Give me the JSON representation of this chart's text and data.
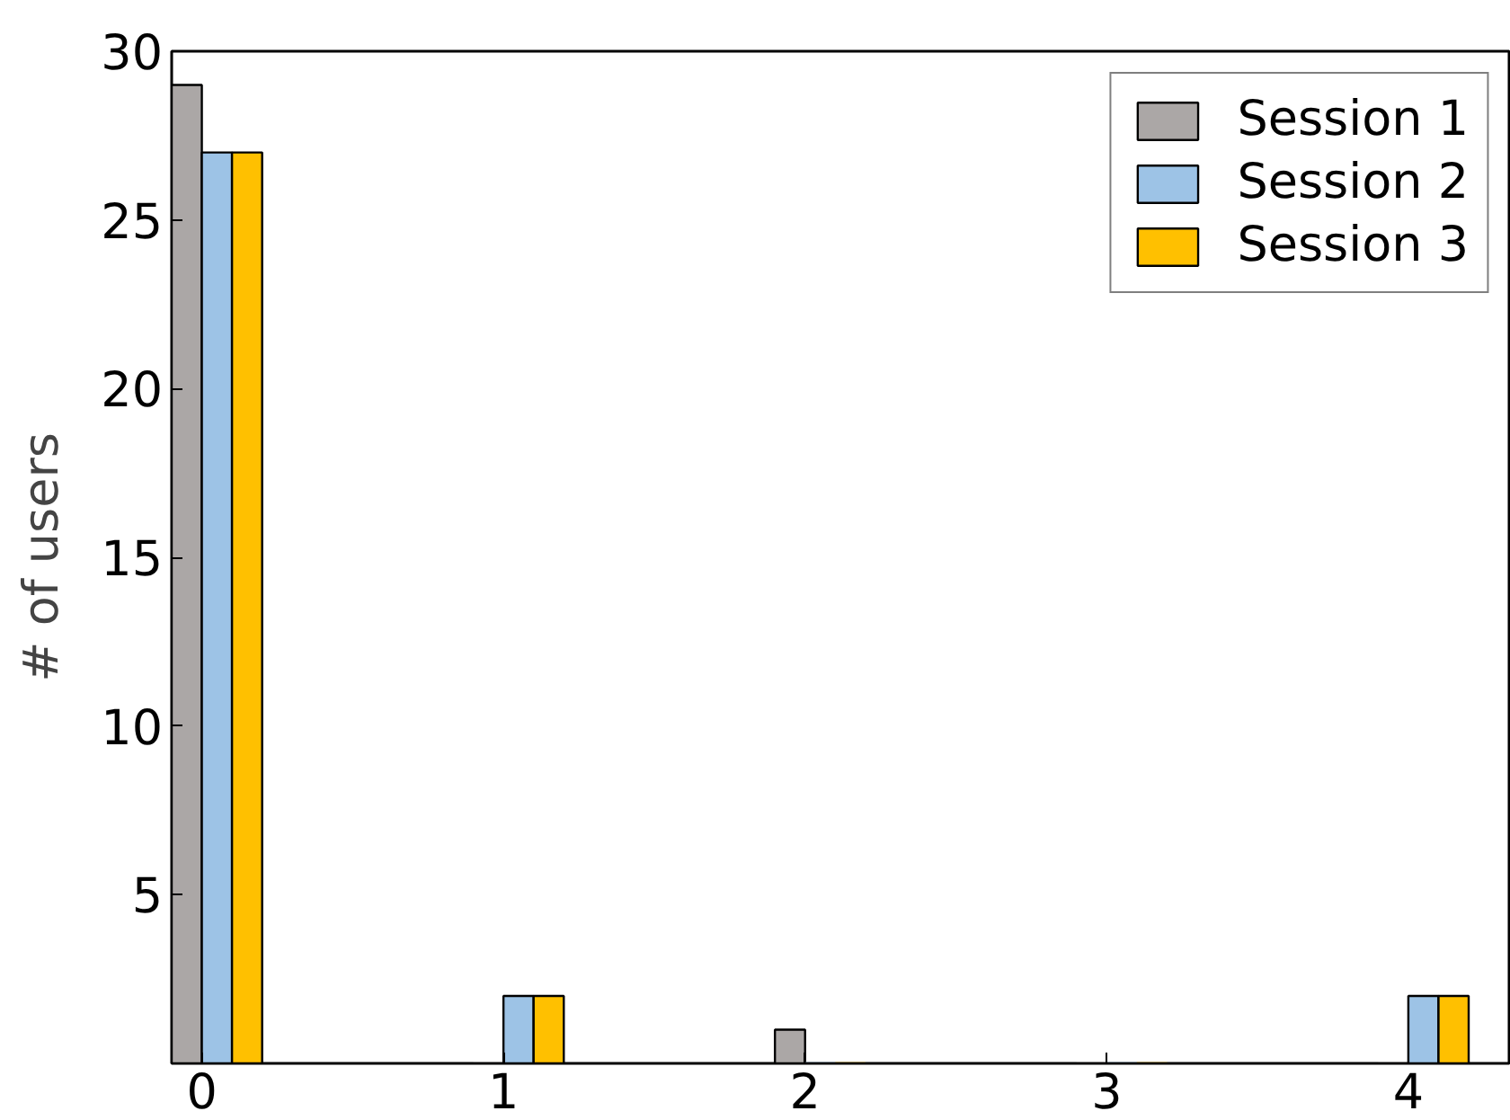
{
  "chart_data": {
    "type": "bar",
    "ylabel": "# of users",
    "x": [
      0,
      1,
      2,
      3,
      4
    ],
    "series": [
      {
        "name": "Session 1",
        "color": "#aba7a6",
        "values": [
          29,
          0,
          1,
          0,
          0
        ]
      },
      {
        "name": "Session 2",
        "color": "#9dc3e6",
        "values": [
          27,
          2,
          0,
          0,
          2
        ]
      },
      {
        "name": "Session 3",
        "color": "#ffc000",
        "values": [
          27,
          2,
          0,
          0,
          2
        ]
      }
    ],
    "xlim": [
      -0.1,
      4.34
    ],
    "xticks": [
      0,
      1,
      2,
      3,
      4
    ],
    "ylim": [
      0,
      30
    ],
    "yticks": [
      5,
      10,
      15,
      20,
      25,
      30
    ],
    "grid": false,
    "legend": "top right"
  }
}
